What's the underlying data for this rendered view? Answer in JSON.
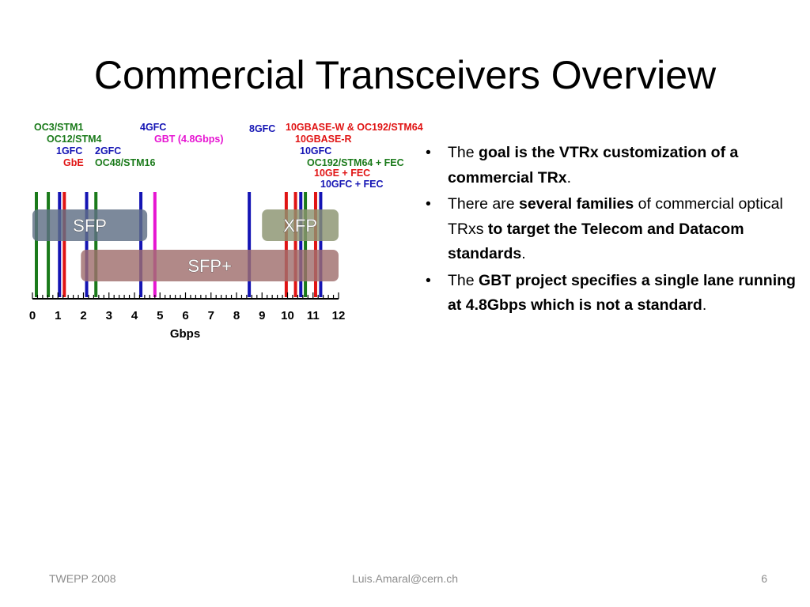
{
  "slide": {
    "title": "Commercial Transceivers Overview",
    "footer_left": "TWEPP 2008",
    "footer_center": "Luis.Amaral@cern.ch",
    "footer_right": "6"
  },
  "bullets": [
    {
      "parts": [
        {
          "t": "The ",
          "b": false
        },
        {
          "t": "goal is the VTRx customization of a commercial TRx",
          "b": true
        },
        {
          "t": ".",
          "b": false
        }
      ]
    },
    {
      "parts": [
        {
          "t": "There are ",
          "b": false
        },
        {
          "t": "several families",
          "b": true
        },
        {
          "t": " of commercial optical TRxs ",
          "b": false
        },
        {
          "t": "to target the Telecom and Datacom standards",
          "b": true
        },
        {
          "t": ".",
          "b": false
        }
      ]
    },
    {
      "parts": [
        {
          "t": "The ",
          "b": false
        },
        {
          "t": "GBT project specifies a single lane running at 4.8Gbps which is not a standard",
          "b": true
        },
        {
          "t": ".",
          "b": false
        }
      ]
    }
  ],
  "colors": {
    "green": "#1a7a1a",
    "blue": "#1414b4",
    "red": "#e01414",
    "magenta": "#e614d2",
    "sfp_fill": "#5f6f85",
    "xfp_fill": "#8b9470",
    "sfpplus_fill": "#a06f6e"
  },
  "chart_data": {
    "type": "line-markers",
    "xlabel": "Gbps",
    "xlim": [
      0,
      12
    ],
    "x_ticks": [
      "0",
      "1",
      "2",
      "3",
      "4",
      "5",
      "6",
      "7",
      "8",
      "9",
      "10",
      "11",
      "12"
    ],
    "standards": [
      {
        "name": "OC3/STM1",
        "rate": 0.155,
        "color": "green"
      },
      {
        "name": "OC12/STM4",
        "rate": 0.622,
        "color": "green"
      },
      {
        "name": "1GFC",
        "rate": 1.0625,
        "color": "blue"
      },
      {
        "name": "GbE",
        "rate": 1.25,
        "color": "red"
      },
      {
        "name": "2GFC",
        "rate": 2.125,
        "color": "blue"
      },
      {
        "name": "OC48/STM16",
        "rate": 2.488,
        "color": "green"
      },
      {
        "name": "4GFC",
        "rate": 4.25,
        "color": "blue"
      },
      {
        "name": "GBT (4.8Gbps)",
        "rate": 4.8,
        "color": "magenta"
      },
      {
        "name": "8GFC",
        "rate": 8.5,
        "color": "blue"
      },
      {
        "name": "10GBASE-W & OC192/STM64",
        "rate": 9.95,
        "color": "red"
      },
      {
        "name": "10GBASE-R",
        "rate": 10.3125,
        "color": "red"
      },
      {
        "name": "10GFC",
        "rate": 10.52,
        "color": "blue"
      },
      {
        "name": "OC192/STM64 + FEC",
        "rate": 10.7,
        "color": "green"
      },
      {
        "name": "10GE + FEC",
        "rate": 11.1,
        "color": "red"
      },
      {
        "name": "10GFC + FEC",
        "rate": 11.3,
        "color": "blue"
      }
    ],
    "form_factors": [
      {
        "name": "SFP",
        "from": 0.0,
        "to": 4.5,
        "color": "sfp_fill"
      },
      {
        "name": "XFP",
        "from": 9.0,
        "to": 12.0,
        "color": "xfp_fill"
      },
      {
        "name": "SFP+",
        "from": 1.9,
        "to": 12.0,
        "color": "sfpplus_fill"
      }
    ]
  }
}
